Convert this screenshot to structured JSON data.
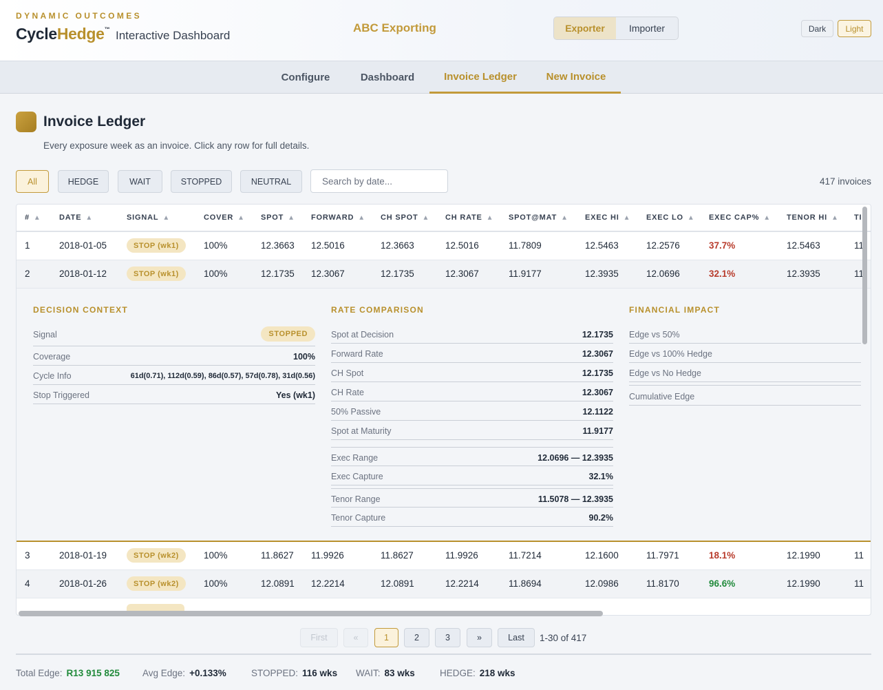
{
  "brand": {
    "kicker": "DYNAMIC OUTCOMES",
    "logo_a": "Cycle",
    "logo_b": "Hedge",
    "tm": "™",
    "subtitle": "Interactive Dashboard"
  },
  "company": "ABC Exporting",
  "roles": [
    "Exporter",
    "Importer"
  ],
  "theme": {
    "dark": "Dark",
    "light": "Light"
  },
  "nav": [
    "Configure",
    "Dashboard",
    "Invoice Ledger",
    "New Invoice"
  ],
  "page": {
    "title": "Invoice Ledger",
    "description": "Every exposure week as an invoice. Click any row for full details."
  },
  "filters": [
    "All",
    "HEDGE",
    "WAIT",
    "STOPPED",
    "NEUTRAL"
  ],
  "search": {
    "placeholder": "Search by date..."
  },
  "invoice_count": "417 invoices",
  "sort_icon": "▲",
  "columns": [
    "#",
    "DATE",
    "SIGNAL",
    "COVER",
    "SPOT",
    "FORWARD",
    "CH SPOT",
    "CH RATE",
    "SPOT@MAT",
    "EXEC HI",
    "EXEC LO",
    "EXEC CAP%",
    "TENOR HI",
    "TI"
  ],
  "rows": [
    {
      "n": "1",
      "date": "2018-01-05",
      "signal": "STOP (wk1)",
      "cover": "100%",
      "spot": "12.3663",
      "forward": "12.5016",
      "ch_spot": "12.3663",
      "ch_rate": "12.5016",
      "spot_mat": "11.7809",
      "exec_hi": "12.5463",
      "exec_lo": "12.2576",
      "exec_cap": "37.7%",
      "tenor_hi": "12.5463",
      "tl": "11"
    },
    {
      "n": "2",
      "date": "2018-01-12",
      "signal": "STOP (wk1)",
      "cover": "100%",
      "spot": "12.1735",
      "forward": "12.3067",
      "ch_spot": "12.1735",
      "ch_rate": "12.3067",
      "spot_mat": "11.9177",
      "exec_hi": "12.3935",
      "exec_lo": "12.0696",
      "exec_cap": "32.1%",
      "tenor_hi": "12.3935",
      "tl": "11"
    },
    {
      "n": "3",
      "date": "2018-01-19",
      "signal": "STOP (wk2)",
      "cover": "100%",
      "spot": "11.8627",
      "forward": "11.9926",
      "ch_spot": "11.8627",
      "ch_rate": "11.9926",
      "spot_mat": "11.7214",
      "exec_hi": "12.1600",
      "exec_lo": "11.7971",
      "exec_cap": "18.1%",
      "tenor_hi": "12.1990",
      "tl": "11"
    },
    {
      "n": "4",
      "date": "2018-01-26",
      "signal": "STOP (wk2)",
      "cover": "100%",
      "spot": "12.0891",
      "forward": "12.2214",
      "ch_spot": "12.0891",
      "ch_rate": "12.2214",
      "spot_mat": "11.8694",
      "exec_hi": "12.0986",
      "exec_lo": "11.8170",
      "exec_cap": "96.6%",
      "tenor_hi": "12.1990",
      "tl": "11"
    }
  ],
  "detail": {
    "decision": {
      "title": "DECISION CONTEXT",
      "signal_label": "Signal",
      "signal_value": "STOPPED",
      "coverage_label": "Coverage",
      "coverage_value": "100%",
      "cycle_label": "Cycle Info",
      "cycle_value": "61d(0.71), 112d(0.59), 86d(0.57), 57d(0.78), 31d(0.56)",
      "stop_label": "Stop Triggered",
      "stop_value": "Yes (wk1)"
    },
    "rate": {
      "title": "RATE COMPARISON",
      "items": [
        {
          "k": "Spot at Decision",
          "v": "12.1735"
        },
        {
          "k": "Forward Rate",
          "v": "12.3067"
        },
        {
          "k": "CH Spot",
          "v": "12.1735"
        },
        {
          "k": "CH Rate",
          "v": "12.3067"
        },
        {
          "k": "50% Passive",
          "v": "12.1122"
        },
        {
          "k": "Spot at Maturity",
          "v": "11.9177"
        },
        {
          "k": "Exec Range",
          "v": "12.0696 — 12.3935"
        },
        {
          "k": "Exec Capture",
          "v": "32.1%"
        },
        {
          "k": "Tenor Range",
          "v": "11.5078 — 12.3935"
        },
        {
          "k": "Tenor Capture",
          "v": "90.2%"
        }
      ]
    },
    "financial": {
      "title": "FINANCIAL IMPACT",
      "items": [
        {
          "k": "Edge vs 50%"
        },
        {
          "k": "Edge vs 100% Hedge"
        },
        {
          "k": "Edge vs No Hedge"
        },
        {
          "k": "Cumulative Edge"
        }
      ]
    }
  },
  "pagination": {
    "first": "First",
    "prev": "«",
    "pages": [
      "1",
      "2",
      "3"
    ],
    "next": "»",
    "last": "Last",
    "info": "1-30 of 417"
  },
  "footer": {
    "total_edge_label": "Total Edge:",
    "total_edge_value": "R13 915 825",
    "avg_edge_label": "Avg Edge:",
    "avg_edge_value": "+0.133%",
    "stopped_label": "STOPPED:",
    "stopped_value": "116 wks",
    "wait_label": "WAIT:",
    "wait_value": "83 wks",
    "hedge_label": "HEDGE:",
    "hedge_value": "218 wks"
  },
  "colors": {
    "accent": "#b8902c",
    "negative": "#b83c2c",
    "positive": "#218a3b"
  }
}
